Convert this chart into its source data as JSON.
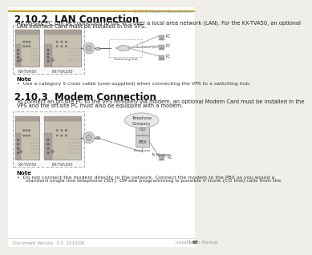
{
  "bg_color": "#f0eeeb",
  "page_bg": "#ffffff",
  "header_line_color": "#c8a020",
  "header_text": "2.10.3 Modem Connection",
  "header_text_color": "#999999",
  "section1_title": "2.10.2  LAN Connection",
  "section1_body1": "An on-site PC can be connected to the VPS over a local area network (LAN). For the KX-TVA50, an optional",
  "section1_body2": "LAN Interface Card must be installed in the VPS.",
  "note_title": "Note",
  "section1_note_bullet": "Use a category 5 cross cable (user-supplied) when connecting the VPS to a switching hub.",
  "section2_title": "2.10.3  Modem Connection",
  "section2_body1": "To connect an off-site PC to the VPS remotely via modem, an optional Modem Card must be installed in the",
  "section2_body2": "VPS and the off-site PC must also be equipped with a modem.",
  "section2_note_bullet1": "Do not connect the modem directly to the network. Connect the modem to the PBX as you would a",
  "section2_note_bullet2": "standard single line telephone (SLT). Off-site programming is possible if trunk (CO line) calls from the",
  "footer_left": "Document Version  3.0  2010/08",
  "footer_right": "Installation Manual",
  "footer_bar": "67",
  "label_kxtva50": "KX-TVA50",
  "label_kxtva200": "KX-TVA200",
  "label_switching_hub": "Switching Hub",
  "label_pc": "PC",
  "label_to_network_port": "To network port",
  "label_telephone_company": "Telephone\nCompany",
  "label_co": "CO",
  "label_pbx": "PBX",
  "label_extension": "Extension",
  "label_to_modem": "To Modem",
  "vps_color": "#c8c0b0",
  "vps_dark": "#a8a098",
  "vps_edge": "#888888",
  "diagram_bg": "#f8f8f8",
  "diagram_border": "#aaaaaa",
  "hub_color": "#d8d8d8",
  "pc_color": "#cccccc",
  "connector_color": "#c0c0c0",
  "line_color": "#888888"
}
